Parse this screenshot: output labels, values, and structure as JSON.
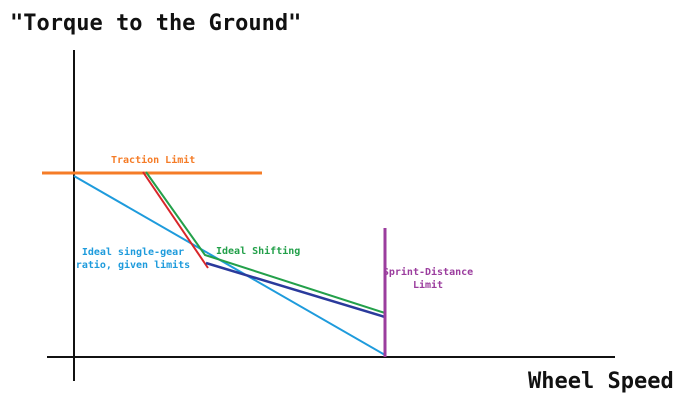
{
  "title": "\"Torque to the Ground\"",
  "x_axis_label": "Wheel Speed",
  "annotations": {
    "traction_limit": "Traction Limit",
    "ideal_shifting": "Ideal Shifting",
    "single_gear": [
      "Ideal single-gear",
      "ratio, given limits"
    ],
    "sprint_limit": [
      "Sprint-Distance",
      "Limit"
    ]
  }
}
